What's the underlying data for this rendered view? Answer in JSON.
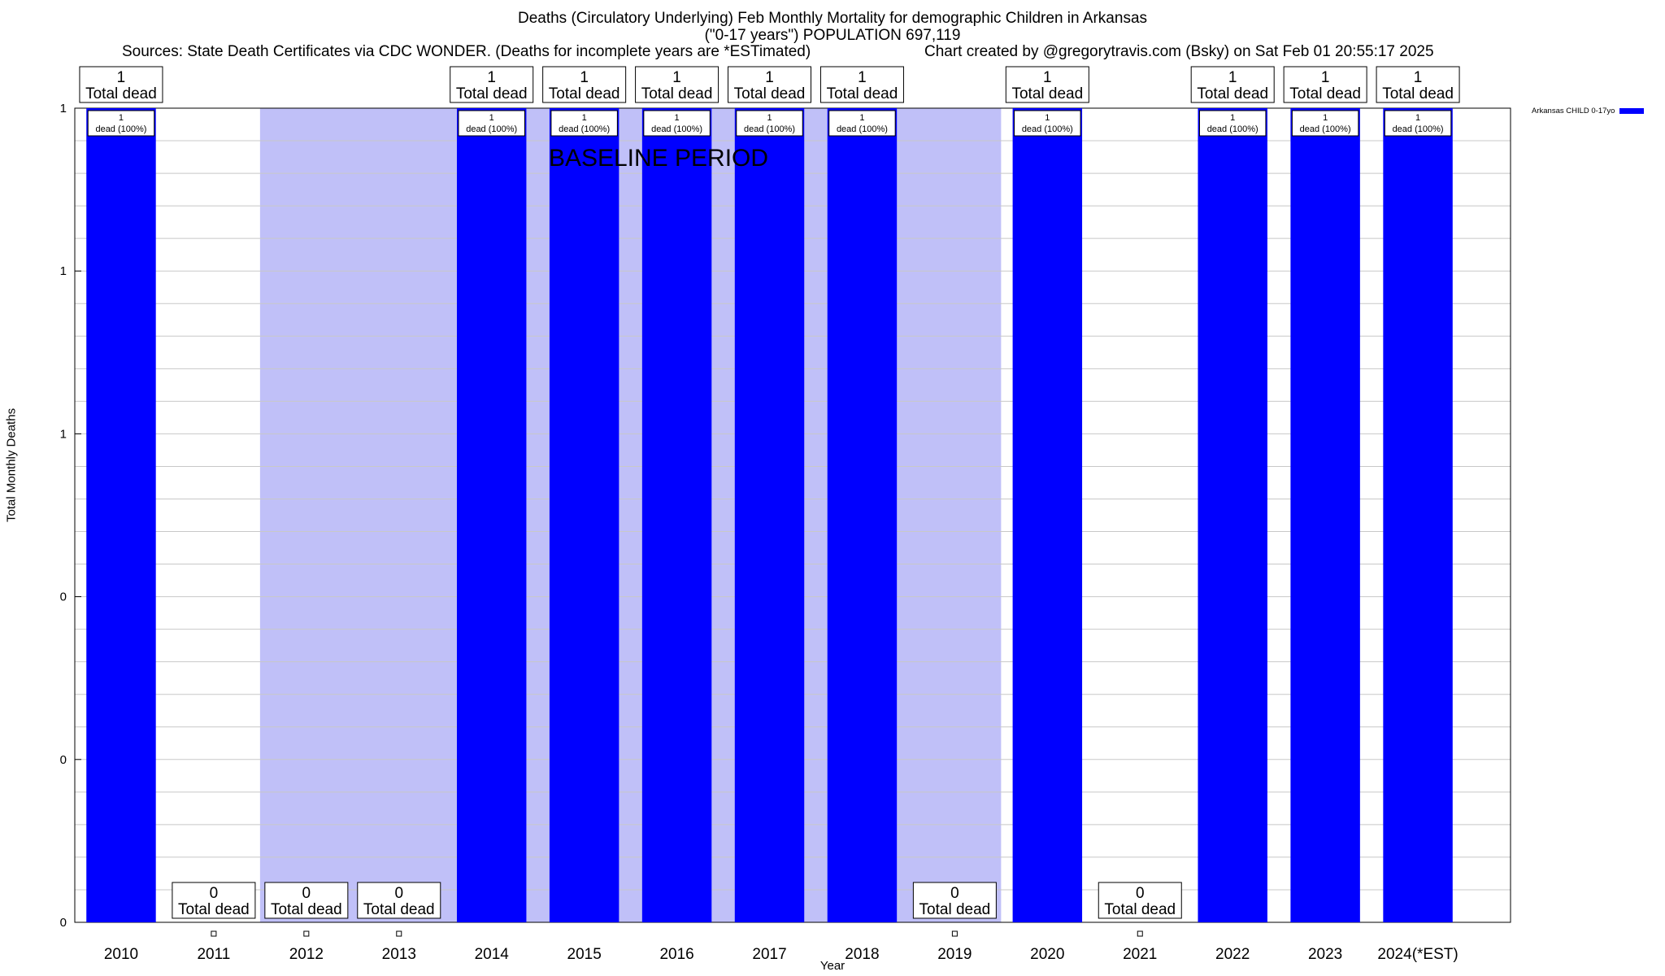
{
  "chart_data": {
    "type": "bar",
    "title": "Deaths (Circulatory Underlying) Feb Monthly Mortality for demographic Children in Arkansas",
    "subtitle": "(\"0-17 years\") POPULATION 697,119",
    "source_text": "Sources: State Death Certificates via CDC WONDER. (Deaths for incomplete years are *ESTimated)",
    "credit_text": "Chart created by @gregorytravis.com (Bsky) on Sat Feb 01 20:55:17 2025",
    "xlabel": "Year",
    "ylabel": "Total Monthly Deaths",
    "ylim": [
      0,
      1
    ],
    "y_tick_labels": [
      "0",
      "0",
      "0",
      "1",
      "1",
      "1"
    ],
    "grid": true,
    "legend_position": "top-right",
    "categories": [
      "2010",
      "2011",
      "2012",
      "2013",
      "2014",
      "2015",
      "2016",
      "2017",
      "2018",
      "2019",
      "2020",
      "2021",
      "2022",
      "2023",
      "2024(*EST)"
    ],
    "series": [
      {
        "name": "Arkansas CHILD 0-17yo",
        "color": "#0000ff",
        "values": [
          1,
          0,
          0,
          0,
          1,
          1,
          1,
          1,
          1,
          0,
          1,
          0,
          1,
          1,
          1
        ]
      }
    ],
    "total_labels": [
      "1",
      "0",
      "0",
      "0",
      "1",
      "1",
      "1",
      "1",
      "1",
      "0",
      "1",
      "0",
      "1",
      "1",
      "1"
    ],
    "total_suffix": "Total dead",
    "bar_inner_labels": [
      "1",
      "",
      "",
      "",
      "1",
      "1",
      "1",
      "1",
      "1",
      "",
      "1",
      "",
      "1",
      "1",
      "1"
    ],
    "bar_inner_sublabel": "dead (100%)",
    "baseline": {
      "label": "BASELINE PERIOD",
      "from": "2012",
      "to": "2019",
      "color": "#c0c0f8"
    }
  }
}
